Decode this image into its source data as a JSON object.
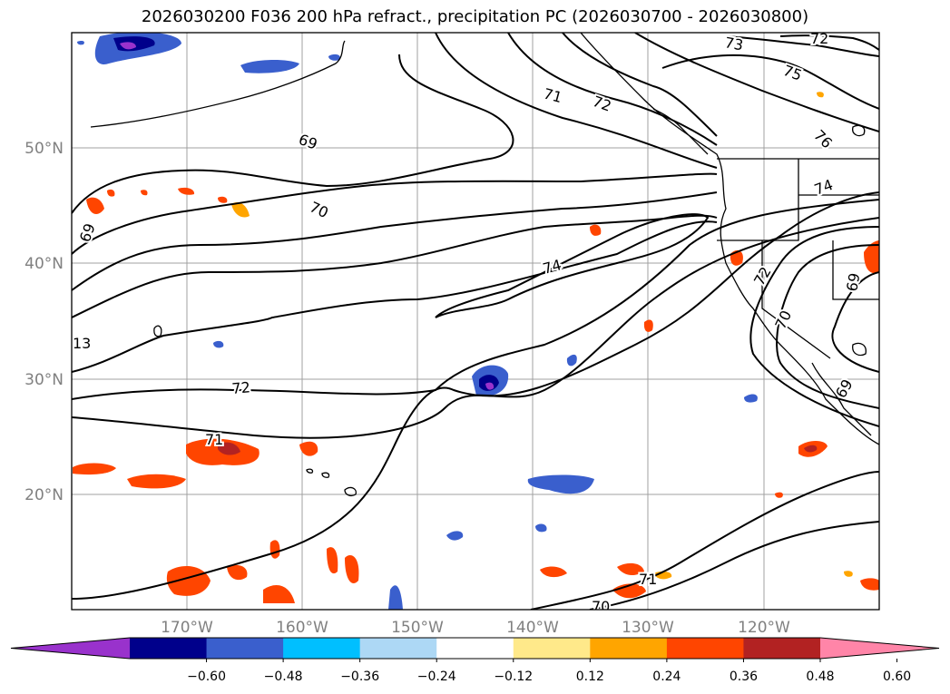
{
  "title": "2026030200 F036 200 hPa refract., precipitation PC (2026030700 - 2026030800)",
  "latitude_labels": [
    "50°N",
    "40°N",
    "30°N",
    "20°N"
  ],
  "longitude_labels": [
    "170°W",
    "160°W",
    "150°W",
    "140°W",
    "130°W",
    "120°W"
  ],
  "contour_labels": [
    "73",
    "72",
    "75",
    "71",
    "72",
    "76",
    "69",
    "74",
    "70",
    "69",
    "74",
    "72",
    "69",
    "13",
    "70",
    "72",
    "69",
    "71",
    "71",
    "70"
  ],
  "colorbar": {
    "ticks": [
      "−0.60",
      "−0.48",
      "−0.36",
      "−0.24",
      "−0.12",
      "0.12",
      "0.24",
      "0.36",
      "0.48",
      "0.60"
    ],
    "colors": [
      "#9932cc",
      "#00008b",
      "#3a5fcd",
      "#00bfff",
      "#add8f5",
      "#ffffff",
      "#ffe98a",
      "#ffa500",
      "#ff4500",
      "#b22222",
      "#ff85a8"
    ]
  },
  "colors": {
    "contour": "#000000",
    "grid": "#a0a0a0",
    "coast": "#000000"
  }
}
